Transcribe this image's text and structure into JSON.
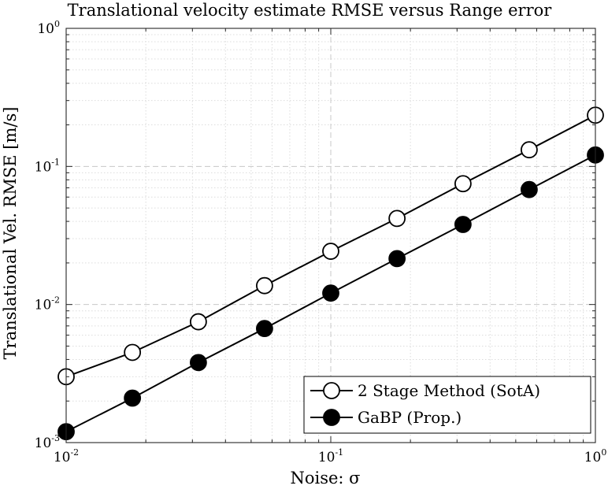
{
  "chart_data": {
    "type": "line",
    "title": "Translational velocity estimate RMSE versus Range error",
    "xlabel": "Noise: σ",
    "ylabel": "Translational Vel. RMSE [m/s]",
    "xscale": "log",
    "yscale": "log",
    "xlim": [
      0.01,
      1
    ],
    "ylim": [
      0.001,
      1
    ],
    "grid": true,
    "legend_position": "bottom-right",
    "x_ticks": [
      {
        "base": "10",
        "exp": "-2"
      },
      {
        "base": "10",
        "exp": "-1"
      },
      {
        "base": "10",
        "exp": "0"
      }
    ],
    "y_ticks": [
      {
        "base": "10",
        "exp": "-3"
      },
      {
        "base": "10",
        "exp": "-2"
      },
      {
        "base": "10",
        "exp": "-1"
      },
      {
        "base": "10",
        "exp": "0"
      }
    ],
    "x": [
      0.01,
      0.0178,
      0.0316,
      0.0562,
      0.1,
      0.178,
      0.316,
      0.562,
      1.0
    ],
    "series": [
      {
        "name": "2 Stage Method (SotA)",
        "marker": "open-circle",
        "color": "#000000",
        "values": [
          0.003,
          0.0045,
          0.0075,
          0.0137,
          0.0243,
          0.042,
          0.075,
          0.132,
          0.235
        ]
      },
      {
        "name": "GaBP (Prop.)",
        "marker": "filled-circle",
        "color": "#000000",
        "values": [
          0.0012,
          0.0021,
          0.0038,
          0.0067,
          0.0121,
          0.0215,
          0.038,
          0.068,
          0.121
        ]
      }
    ]
  }
}
